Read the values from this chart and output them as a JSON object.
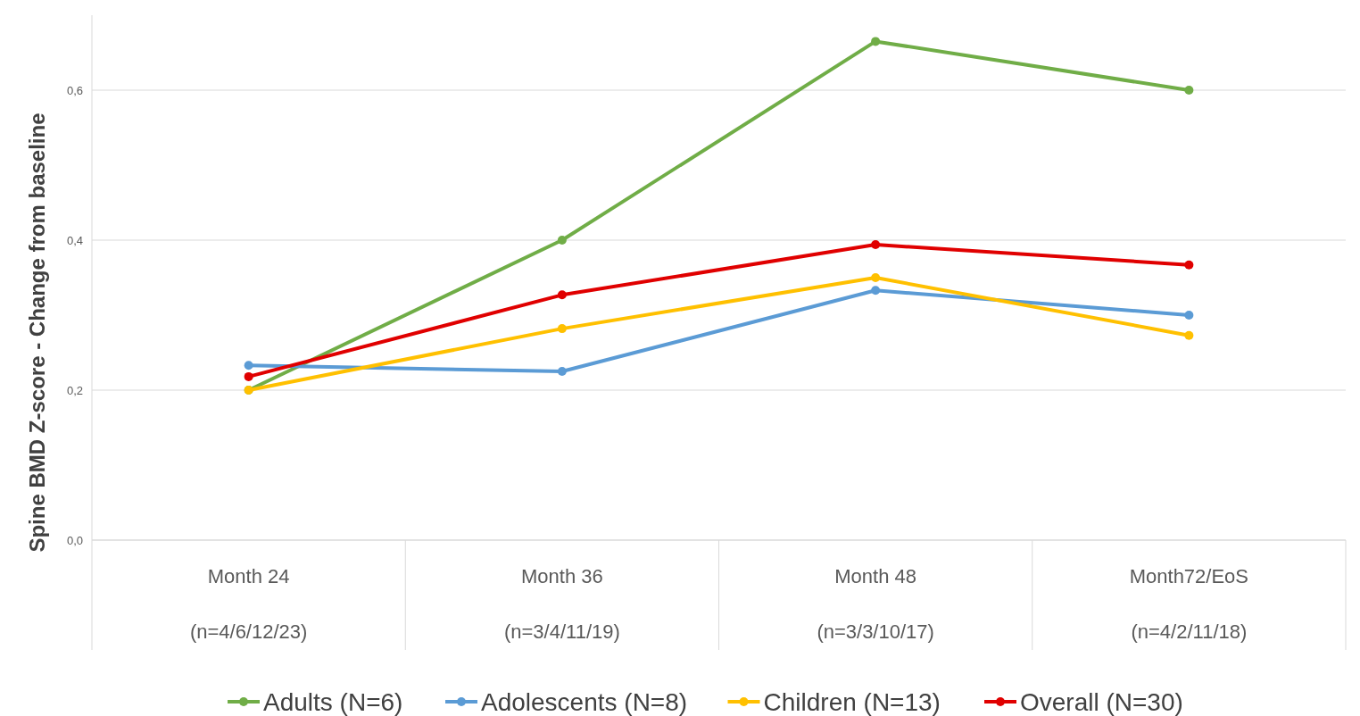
{
  "chart_data": {
    "type": "line",
    "ylabel": "Spine BMD Z-score - Change from baseline",
    "categories": [
      "Month 24\n(n=4/6/12/23)",
      "Month 36\n(n=3/4/11/19)",
      "Month 48\n(n=3/3/10/17)",
      "Month72/EoS\n(n=4/2/11/18)"
    ],
    "series": [
      {
        "name": "Adults (N=6)",
        "color": "#70ad47",
        "values": [
          0.2,
          0.4,
          0.665,
          0.6
        ]
      },
      {
        "name": "Adolescents (N=8)",
        "color": "#5b9bd5",
        "values": [
          0.233,
          0.225,
          0.333,
          0.3
        ]
      },
      {
        "name": "Children (N=13)",
        "color": "#ffc000",
        "values": [
          0.2,
          0.282,
          0.35,
          0.273
        ]
      },
      {
        "name": "Overall (N=30)",
        "color": "#e00000",
        "values": [
          0.218,
          0.327,
          0.394,
          0.367
        ]
      }
    ],
    "ylim": [
      0,
      0.7
    ],
    "yticks": [
      {
        "value": 0,
        "label": "0,0"
      },
      {
        "value": 0.2,
        "label": "0,2"
      },
      {
        "value": 0.4,
        "label": "0,4"
      },
      {
        "value": 0.6,
        "label": "0,6"
      }
    ],
    "grid": "y",
    "legend": "bottom",
    "marker": "circle",
    "line_style": "solid"
  }
}
